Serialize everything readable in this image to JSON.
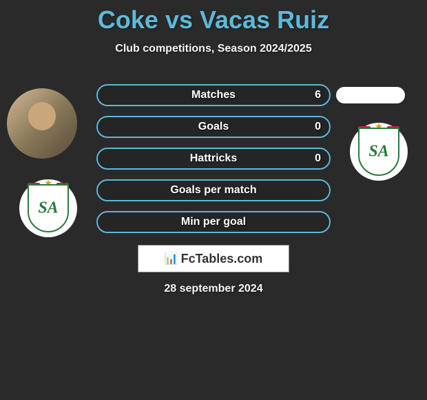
{
  "header": {
    "title": "Coke vs Vacas Ruiz",
    "subtitle": "Club competitions, Season 2024/2025"
  },
  "stats": [
    {
      "label": "Matches",
      "right_value": "6"
    },
    {
      "label": "Goals",
      "right_value": "0"
    },
    {
      "label": "Hattricks",
      "right_value": "0"
    },
    {
      "label": "Goals per match",
      "right_value": ""
    },
    {
      "label": "Min per goal",
      "right_value": ""
    }
  ],
  "stat_bar": {
    "border_color": "#5fb8d9",
    "text_color": "#ffffff",
    "background_color": "rgba(0,0,0,0.1)"
  },
  "brand": {
    "text": "FcTables.com"
  },
  "date": "28 september 2024",
  "colors": {
    "background": "#2a2a2a",
    "title_color": "#5fb8d9",
    "text_color": "#f5f5f5",
    "badge_green": "#2a7a3a",
    "badge_red": "#c41e3a",
    "badge_gold": "#d4a017"
  },
  "badge": {
    "letters": "SA"
  }
}
